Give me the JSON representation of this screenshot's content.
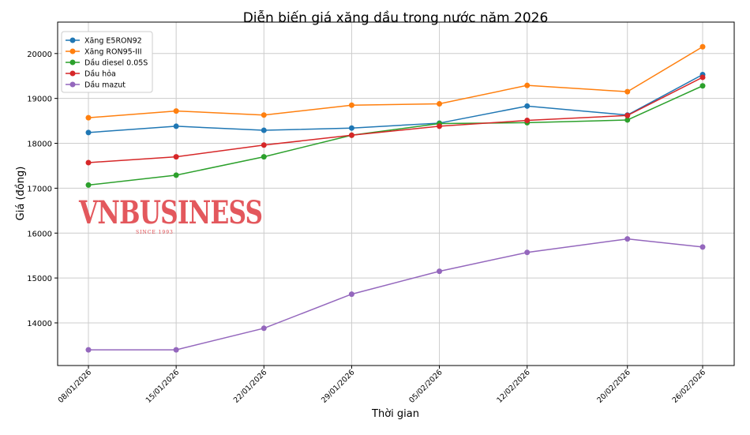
{
  "chart_data": {
    "type": "line",
    "title": "Diễn biến giá xăng dầu trong nước năm 2026",
    "xlabel": "Thời gian",
    "ylabel": "Giá (đồng)",
    "x": [
      "08/01/2026",
      "15/01/2026",
      "22/01/2026",
      "29/01/2026",
      "05/02/2026",
      "12/02/2026",
      "20/02/2026",
      "26/02/2026"
    ],
    "x_days": [
      8,
      15,
      22,
      29,
      36,
      43,
      51,
      57
    ],
    "yticks": [
      14000,
      15000,
      16000,
      17000,
      18000,
      19000,
      20000
    ],
    "ylim": [
      13050,
      20700
    ],
    "grid": true,
    "legend_position": "top-left",
    "series": [
      {
        "name": "Xăng E5RON92",
        "color": "#1f77b4",
        "values": [
          18240,
          18380,
          18290,
          18340,
          18450,
          18830,
          18630,
          19530
        ]
      },
      {
        "name": "Xăng RON95-III",
        "color": "#ff7f0e",
        "values": [
          18570,
          18720,
          18630,
          18850,
          18880,
          19290,
          19150,
          20150
        ]
      },
      {
        "name": "Dầu diesel 0.05S",
        "color": "#2ca02c",
        "values": [
          17070,
          17290,
          17700,
          18180,
          18440,
          18460,
          18520,
          19280
        ]
      },
      {
        "name": "Dầu hỏa",
        "color": "#d62728",
        "values": [
          17570,
          17700,
          17960,
          18180,
          18380,
          18510,
          18620,
          19470
        ]
      },
      {
        "name": "Dầu mazut",
        "color": "#9467bd",
        "values": [
          13400,
          13400,
          13880,
          14640,
          15150,
          15570,
          15870,
          15690
        ]
      }
    ]
  },
  "watermark": {
    "text": "VNBUSINESS",
    "sub": "SINCE 1993"
  }
}
